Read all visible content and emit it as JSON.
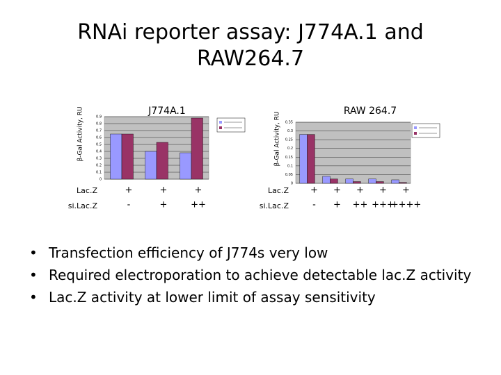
{
  "title": "RNAi reporter assay: J774A.1 and RAW264.7",
  "bullets": [
    "Transfection efficiency of J774s very low",
    "Required electroporation to achieve detectable lac.Z activity",
    "Lac.Z activity at lower limit of assay sensitivity"
  ],
  "chart_data": [
    {
      "type": "bar",
      "title": "J774A.1",
      "y_label": "β-Gal Activity, RU",
      "row_labels": [
        "Lac.Z",
        "si.Lac.Z"
      ],
      "lacz": [
        "+",
        "+",
        "+"
      ],
      "silacz": [
        "-",
        "+",
        "++"
      ],
      "series": [
        {
          "color": "#9999ff",
          "values": [
            0.65,
            0.4,
            0.38
          ]
        },
        {
          "color": "#993366",
          "values": [
            0.65,
            0.53,
            0.88
          ]
        }
      ],
      "ylim": [
        0,
        0.9
      ],
      "yticks": [
        0,
        0.1,
        0.2,
        0.3,
        0.4,
        0.5,
        0.6,
        0.7,
        0.8,
        0.9
      ],
      "grid": true
    },
    {
      "type": "bar",
      "title": "RAW 264.7",
      "y_label": "β-Gal Activity, RU",
      "row_labels": [
        "Lac.Z",
        "si.Lac.Z"
      ],
      "lacz": [
        "+",
        "+",
        "+",
        "+",
        "+"
      ],
      "silacz": [
        "-",
        "+",
        "++",
        "+++",
        "++++"
      ],
      "series": [
        {
          "color": "#9999ff",
          "values": [
            0.28,
            0.04,
            0.025,
            0.025,
            0.02
          ]
        },
        {
          "color": "#993366",
          "values": [
            0.28,
            0.025,
            0.01,
            0.01,
            0.005
          ]
        }
      ],
      "ylim": [
        0,
        0.35
      ],
      "yticks": [
        0,
        0.05,
        0.1,
        0.15,
        0.2,
        0.25,
        0.3,
        0.35
      ],
      "grid": true
    }
  ]
}
